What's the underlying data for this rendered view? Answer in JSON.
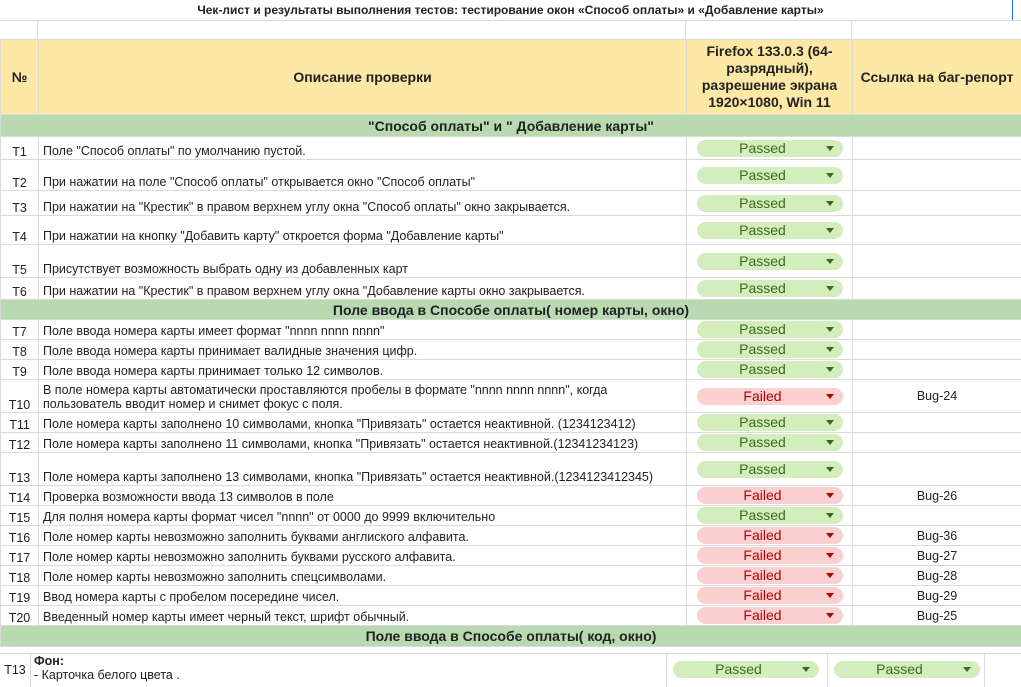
{
  "sheet": {
    "title": "Чек-лист и результаты выполнения тестов: тестирование окон «Способ оплаты» и «Добавление карты»"
  },
  "header": {
    "num": "№",
    "description": "Описание проверки",
    "environment": "Firefox 133.0.3 (64-разрядный), разрешение экрана 1920×1080, Win 11",
    "bug_link": "Ссылка на баг-репорт"
  },
  "sections": [
    "\"Способ оплаты\" и \" Добавление карты\"",
    "Поле ввода в Способе оплаты( номер карты, окно)",
    "Поле ввода в Способе оплаты( код, окно)"
  ],
  "rows": [
    {
      "id": "T1",
      "desc": "Поле \"Способ оплаты\" по умолчанию пустой.",
      "status": "Passed",
      "bug": ""
    },
    {
      "id": "T2",
      "desc": "При нажатии на поле \"Способ оплаты\" открывается окно \"Способ оплаты\"",
      "status": "Passed",
      "bug": ""
    },
    {
      "id": "T3",
      "desc": "При нажатии на \"Крестик\" в правом верхнем углу окна \"Способ оплаты\" окно закрывается.",
      "status": "Passed",
      "bug": ""
    },
    {
      "id": "T4",
      "desc": "При нажатии на кнопку \"Добавить карту\" откроется форма \"Добавление карты\"",
      "status": "Passed",
      "bug": ""
    },
    {
      "id": "T5",
      "desc": "Присутствует возможность выбрать одну из добавленных карт",
      "status": "Passed",
      "bug": ""
    },
    {
      "id": "T6",
      "desc": "При нажатии на \"Крестик\" в правом верхнем углу окна \"Добавление карты окно закрывается.",
      "status": "Passed",
      "bug": ""
    },
    {
      "id": "T7",
      "desc": "Поле ввода номера карты имеет формат \"nnnn nnnn nnnn\"",
      "status": "Passed",
      "bug": ""
    },
    {
      "id": "T8",
      "desc": "Поле ввода номера карты принимает валидные значения цифр.",
      "status": "Passed",
      "bug": ""
    },
    {
      "id": "T9",
      "desc": "Поле ввода номера карты принимает только 12 символов.",
      "status": "Passed",
      "bug": ""
    },
    {
      "id": "T10",
      "desc": "В поле номера карты автоматически проставляются пробелы в формате \"nnnn nnnn nnnn\", когда пользователь вводит номер и снимет фокус с поля.",
      "status": "Failed",
      "bug": "Bug-24"
    },
    {
      "id": "T11",
      "desc": "Поле номера карты заполнено 10 символами, кнопка \"Привязать\" остается неактивной. (1234123412)",
      "status": "Passed",
      "bug": ""
    },
    {
      "id": "T12",
      "desc": "Поле номера карты заполнено 11 символами, кнопка \"Привязать\" остается неактивной.(12341234123)",
      "status": "Passed",
      "bug": ""
    },
    {
      "id": "T13",
      "desc": "Поле номера карты заполнено 13 символами, кнопка \"Привязать\" остается неактивной.(1234123412345)",
      "status": "Passed",
      "bug": ""
    },
    {
      "id": "T14",
      "desc": "Проверка возможности ввода 13 символов в поле",
      "status": "Failed",
      "bug": "Bug-26"
    },
    {
      "id": "T15",
      "desc": "Для полня номера карты формат чисел \"nnnn\" от 0000 до 9999 включительно",
      "status": "Passed",
      "bug": ""
    },
    {
      "id": "T16",
      "desc": "Поле номер карты невозможно заполнить буквами англиского алфавита.",
      "status": "Failed",
      "bug": "Bug-36"
    },
    {
      "id": "T17",
      "desc": "Поле номер карты невозможно заполнить буквами русского алфавита.",
      "status": "Failed",
      "bug": "Bug-27"
    },
    {
      "id": "T18",
      "desc": "Поле номер карты невозможно заполнить спецсимволами.",
      "status": "Failed",
      "bug": "Bug-28"
    },
    {
      "id": "T19",
      "desc": "Ввод номера карты с пробелом посередине чисел.",
      "status": "Failed",
      "bug": "Bug-29"
    },
    {
      "id": "T20",
      "desc": "Введенный номер карты имеет черный текст, шрифт обычный.",
      "status": "Failed",
      "bug": "Bug-25"
    }
  ],
  "bottom": {
    "id": "T13",
    "title": "Фон:",
    "line": "- Карточка белого цвета .",
    "status1": "Passed",
    "status2": "Passed"
  },
  "colors": {
    "header_bg": "#fde8a6",
    "section_bg": "#b9dab0",
    "passed_bg": "#d4edbc",
    "passed_text": "#3a6b1c",
    "failed_bg": "#fbd0d0",
    "failed_text": "#b10202"
  },
  "icons": {
    "dropdown": "dropdown-arrow-icon"
  }
}
